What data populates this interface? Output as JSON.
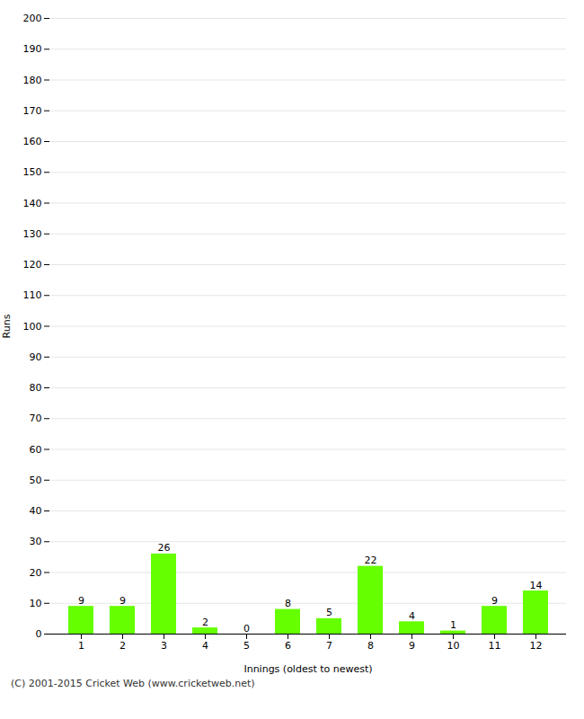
{
  "chart_data": {
    "type": "bar",
    "categories": [
      "1",
      "2",
      "3",
      "4",
      "5",
      "6",
      "7",
      "8",
      "9",
      "10",
      "11",
      "12"
    ],
    "values": [
      9,
      9,
      26,
      2,
      0,
      8,
      5,
      22,
      4,
      1,
      9,
      14
    ],
    "color": "#66ff00",
    "xlabel": "Innings (oldest to newest)",
    "ylabel": "Runs",
    "ylim": [
      0,
      200
    ],
    "yticks": [
      0,
      10,
      20,
      30,
      40,
      50,
      60,
      70,
      80,
      90,
      100,
      110,
      120,
      130,
      140,
      150,
      160,
      170,
      180,
      190,
      200
    ],
    "grid": true,
    "data_labels": true,
    "caption": "(C) 2001-2015 Cricket Web (www.cricketweb.net)"
  }
}
